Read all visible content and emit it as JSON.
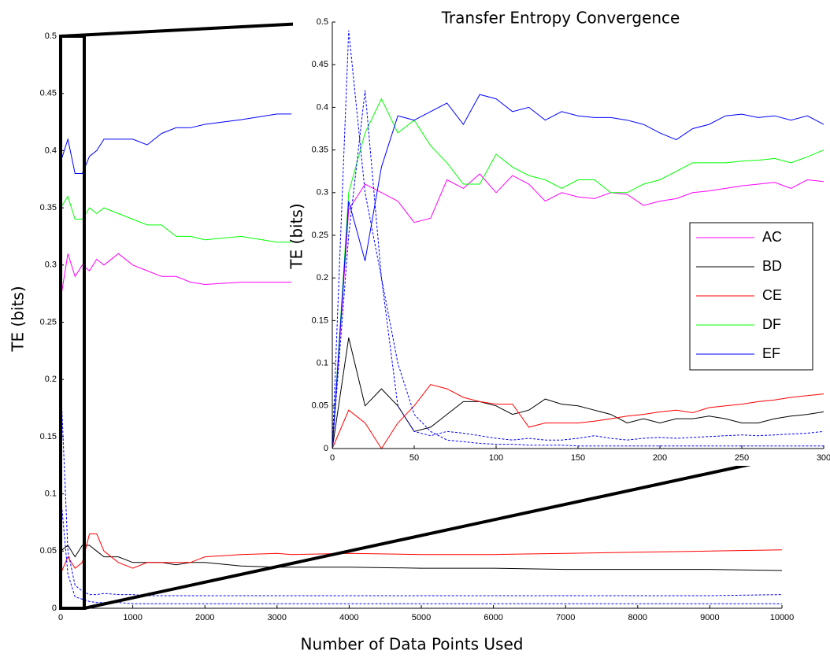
{
  "chart_data": [
    {
      "type": "line",
      "title": "Transfer Entropy Convergence",
      "xlabel": "Number of Data Points Used",
      "ylabel": "TE (bits)",
      "x": [
        0,
        100,
        200,
        300,
        400,
        500,
        600,
        800,
        1000,
        1200,
        1400,
        1600,
        1800,
        2000,
        2500,
        3000,
        3200,
        4000,
        5000,
        6000,
        7000,
        8000,
        9000,
        10000
      ],
      "series": [
        {
          "color": "#ff00ff",
          "values": [
            0.27,
            0.31,
            0.29,
            0.3,
            0.295,
            0.305,
            0.3,
            0.31,
            0.3,
            0.295,
            0.29,
            0.29,
            0.285,
            0.283,
            0.285,
            0.285,
            0.285,
            null,
            null,
            null,
            null,
            null,
            null,
            null
          ]
        },
        {
          "color": "#000000",
          "values": [
            0.05,
            0.055,
            0.045,
            0.055,
            0.055,
            0.05,
            0.045,
            0.045,
            0.04,
            0.04,
            0.04,
            0.038,
            0.04,
            0.04,
            0.037,
            0.036,
            0.036,
            0.036,
            0.035,
            0.035,
            0.034,
            0.034,
            0.034,
            0.033
          ]
        },
        {
          "color": "#ff0000",
          "values": [
            0.03,
            0.045,
            0.035,
            0.04,
            0.065,
            0.065,
            0.05,
            0.04,
            0.035,
            0.04,
            0.04,
            0.04,
            0.04,
            0.045,
            0.047,
            0.048,
            0.047,
            0.048,
            0.047,
            0.047,
            0.048,
            0.049,
            0.05,
            0.051
          ]
        },
        {
          "color": "#00ff00",
          "values": [
            0.35,
            0.36,
            0.34,
            0.34,
            0.35,
            0.345,
            0.35,
            0.345,
            0.34,
            0.335,
            0.335,
            0.325,
            0.325,
            0.322,
            0.325,
            0.32,
            0.32,
            null,
            null,
            null,
            null,
            null,
            null,
            null
          ]
        },
        {
          "color": "#0000ff",
          "values": [
            0.39,
            0.41,
            0.38,
            0.38,
            0.395,
            0.4,
            0.41,
            0.41,
            0.41,
            0.405,
            0.415,
            0.42,
            0.42,
            0.423,
            0.427,
            0.432,
            0.432,
            null,
            null,
            null,
            null,
            null,
            null,
            null
          ]
        },
        {
          "color": "#0000ff",
          "linestyle": "dashed",
          "values": [
            0.2,
            0.05,
            0.02,
            0.015,
            0.012,
            0.012,
            0.013,
            0.012,
            0.012,
            0.011,
            0.011,
            0.011,
            0.011,
            0.011,
            0.011,
            0.011,
            0.011,
            0.011,
            0.011,
            0.011,
            0.011,
            0.011,
            0.011,
            0.012
          ]
        },
        {
          "color": "#0000ff",
          "linestyle": "dashed",
          "values": [
            0.1,
            0.03,
            0.01,
            0.008,
            0.006,
            0.005,
            0.005,
            0.005,
            0.004,
            0.004,
            0.004,
            0.004,
            0.004,
            0.004,
            0.004,
            0.004,
            0.004,
            0.004,
            0.004,
            0.004,
            0.004,
            0.004,
            0.004,
            0.004
          ]
        }
      ],
      "xlim": [
        0,
        10000
      ],
      "ylim": [
        0,
        0.5
      ],
      "xticks": [
        0,
        1000,
        2000,
        3000,
        4000,
        5000,
        6000,
        7000,
        8000,
        9000,
        10000
      ],
      "yticks": [
        0,
        0.05,
        0.1,
        0.15,
        0.2,
        0.25,
        0.3,
        0.35,
        0.4,
        0.45,
        0.5
      ]
    },
    {
      "type": "line",
      "ylabel": "TE (bits)",
      "x": [
        0,
        10,
        20,
        30,
        40,
        50,
        60,
        70,
        80,
        90,
        100,
        110,
        120,
        130,
        140,
        150,
        160,
        170,
        180,
        190,
        200,
        210,
        220,
        230,
        240,
        250,
        260,
        270,
        280,
        290,
        300
      ],
      "series": [
        {
          "name": "AC",
          "color": "#ff00ff",
          "values": [
            0,
            0.28,
            0.31,
            0.3,
            0.29,
            0.265,
            0.27,
            0.315,
            0.305,
            0.322,
            0.3,
            0.32,
            0.31,
            0.29,
            0.3,
            0.295,
            0.293,
            0.3,
            0.298,
            0.285,
            0.29,
            0.293,
            0.3,
            0.302,
            0.305,
            0.308,
            0.31,
            0.312,
            0.305,
            0.315,
            0.313
          ]
        },
        {
          "name": "BD",
          "color": "#000000",
          "values": [
            0,
            0.13,
            0.05,
            0.07,
            0.05,
            0.02,
            0.025,
            0.04,
            0.055,
            0.055,
            0.05,
            0.04,
            0.045,
            0.058,
            0.052,
            0.05,
            0.045,
            0.04,
            0.03,
            0.035,
            0.03,
            0.035,
            0.035,
            0.038,
            0.035,
            0.03,
            0.03,
            0.035,
            0.038,
            0.04,
            0.043
          ]
        },
        {
          "name": "CE",
          "color": "#ff0000",
          "values": [
            0,
            0.045,
            0.03,
            0,
            0.03,
            0.05,
            0.075,
            0.07,
            0.06,
            0.055,
            0.052,
            0.052,
            0.025,
            0.03,
            0.03,
            0.03,
            0.032,
            0.035,
            0.038,
            0.04,
            0.043,
            0.045,
            0.042,
            0.048,
            0.05,
            0.052,
            0.055,
            0.057,
            0.06,
            0.062,
            0.064
          ]
        },
        {
          "name": "DF",
          "color": "#00ff00",
          "values": [
            0,
            0.3,
            0.37,
            0.41,
            0.37,
            0.385,
            0.355,
            0.335,
            0.31,
            0.31,
            0.345,
            0.33,
            0.32,
            0.315,
            0.305,
            0.315,
            0.315,
            0.3,
            0.3,
            0.31,
            0.315,
            0.325,
            0.335,
            0.335,
            0.335,
            0.337,
            0.338,
            0.34,
            0.335,
            0.342,
            0.35
          ]
        },
        {
          "name": "EF",
          "color": "#0000ff",
          "values": [
            0,
            0.29,
            0.22,
            0.33,
            0.39,
            0.385,
            0.395,
            0.405,
            0.38,
            0.415,
            0.41,
            0.395,
            0.4,
            0.385,
            0.395,
            0.39,
            0.388,
            0.388,
            0.385,
            0.38,
            0.37,
            0.362,
            0.375,
            0.38,
            0.39,
            0.392,
            0.388,
            0.39,
            0.385,
            0.39,
            0.38
          ]
        },
        {
          "color": "#0000ff",
          "linestyle": "dashed",
          "values": [
            0,
            0.49,
            0.3,
            0.2,
            0.05,
            0.02,
            0.015,
            0.02,
            0.018,
            0.015,
            0.012,
            0.01,
            0.012,
            0.01,
            0.01,
            0.012,
            0.015,
            0.012,
            0.01,
            0.012,
            0.013,
            0.012,
            0.013,
            0.014,
            0.015,
            0.016,
            0.015,
            0.016,
            0.017,
            0.018,
            0.02
          ]
        },
        {
          "color": "#0000ff",
          "linestyle": "dashed",
          "values": [
            0,
            0.25,
            0.42,
            0.2,
            0.1,
            0.04,
            0.02,
            0.01,
            0.008,
            0.006,
            0.005,
            0.005,
            0.004,
            0.004,
            0.004,
            0.003,
            0.003,
            0.003,
            0.003,
            0.003,
            0.003,
            0.003,
            0.003,
            0.003,
            0.003,
            0.003,
            0.003,
            0.003,
            0.003,
            0.003,
            0.003
          ]
        }
      ],
      "xlim": [
        0,
        300
      ],
      "ylim": [
        0,
        0.5
      ],
      "xticks": [
        0,
        50,
        100,
        150,
        200,
        250,
        300
      ],
      "yticks": [
        0,
        0.05,
        0.1,
        0.15,
        0.2,
        0.25,
        0.3,
        0.35,
        0.4,
        0.45,
        0.5
      ],
      "legend": "right"
    }
  ]
}
